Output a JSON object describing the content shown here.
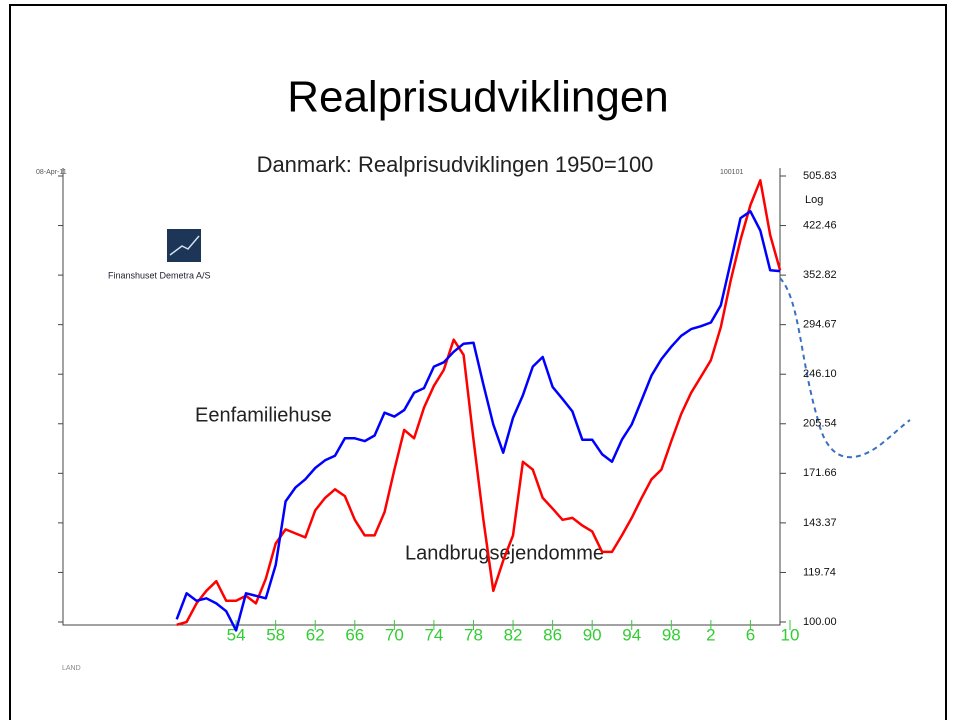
{
  "slide_title": "Realprisudviklingen",
  "chart_data": {
    "type": "line",
    "title": "Danmark: Realprisudviklingen 1950=100",
    "annotations": [
      "08-Apr-11",
      "100101",
      "Log",
      "Finanshuset Demetra A/S",
      "LAND"
    ],
    "log_scale": true,
    "x": [
      1948,
      1949,
      1950,
      1951,
      1952,
      1953,
      1954,
      1955,
      1956,
      1957,
      1958,
      1959,
      1960,
      1961,
      1962,
      1963,
      1964,
      1965,
      1966,
      1967,
      1968,
      1969,
      1970,
      1971,
      1972,
      1973,
      1974,
      1975,
      1976,
      1977,
      1978,
      1979,
      1980,
      1981,
      1982,
      1983,
      1984,
      1985,
      1986,
      1987,
      1988,
      1989,
      1990,
      1991,
      1992,
      1993,
      1994,
      1995,
      1996,
      1997,
      1998,
      1999,
      2000,
      2001,
      2002,
      2003,
      2004,
      2005,
      2006,
      2007,
      2008,
      2009
    ],
    "series": [
      {
        "name": "Eenfamiliehuse",
        "color": "#0000ff",
        "values": [
          101,
          111,
          108,
          109,
          107,
          104,
          97,
          111,
          110,
          109,
          123,
          155,
          163,
          168,
          175,
          180,
          183,
          195,
          195,
          193,
          197,
          214,
          211,
          216,
          230,
          234,
          253,
          257,
          267,
          275,
          276,
          237,
          205,
          185,
          210,
          228,
          253,
          262,
          235,
          225,
          215,
          194,
          194,
          184,
          179,
          194,
          205,
          224,
          245,
          260,
          272,
          283,
          290,
          293,
          297,
          316,
          370,
          434,
          445,
          415,
          359,
          358
        ]
      },
      {
        "name": "Landbrugsejendomme",
        "color": "#ff0000",
        "values": [
          99,
          100,
          107,
          112,
          116,
          108,
          108,
          110,
          107,
          117,
          133,
          140,
          138,
          136,
          150,
          157,
          162,
          158,
          145,
          137,
          137,
          149,
          174,
          201,
          195,
          218,
          236,
          250,
          279,
          264,
          194,
          145,
          112,
          125,
          137,
          179,
          174,
          157,
          151,
          145,
          146,
          142,
          139,
          129,
          129,
          137,
          146,
          157,
          168,
          174,
          193,
          213,
          230,
          244,
          259,
          292,
          346,
          401,
          455,
          498,
          408,
          359
        ]
      }
    ],
    "xlim": [
      1936.5,
      2010
    ],
    "xticks": [
      {
        "value": 1954,
        "label": "54"
      },
      {
        "value": 1958,
        "label": "58"
      },
      {
        "value": 1962,
        "label": "62"
      },
      {
        "value": 1966,
        "label": "66"
      },
      {
        "value": 1970,
        "label": "70"
      },
      {
        "value": 1974,
        "label": "74"
      },
      {
        "value": 1978,
        "label": "78"
      },
      {
        "value": 1982,
        "label": "82"
      },
      {
        "value": 1986,
        "label": "86"
      },
      {
        "value": 1990,
        "label": "90"
      },
      {
        "value": 1994,
        "label": "94"
      },
      {
        "value": 1998,
        "label": "98"
      },
      {
        "value": 2002,
        "label": "2"
      },
      {
        "value": 2006,
        "label": "6"
      },
      {
        "value": 2010,
        "label": "10"
      }
    ],
    "ylim": [
      100,
      505.83
    ],
    "yticks": [
      {
        "value": 100,
        "label": "100.00"
      },
      119.74,
      143.37,
      171.66,
      205.54,
      {
        "value": 246.1,
        "label": "246.10"
      },
      294.67,
      352.82,
      422.46,
      505.83
    ]
  }
}
